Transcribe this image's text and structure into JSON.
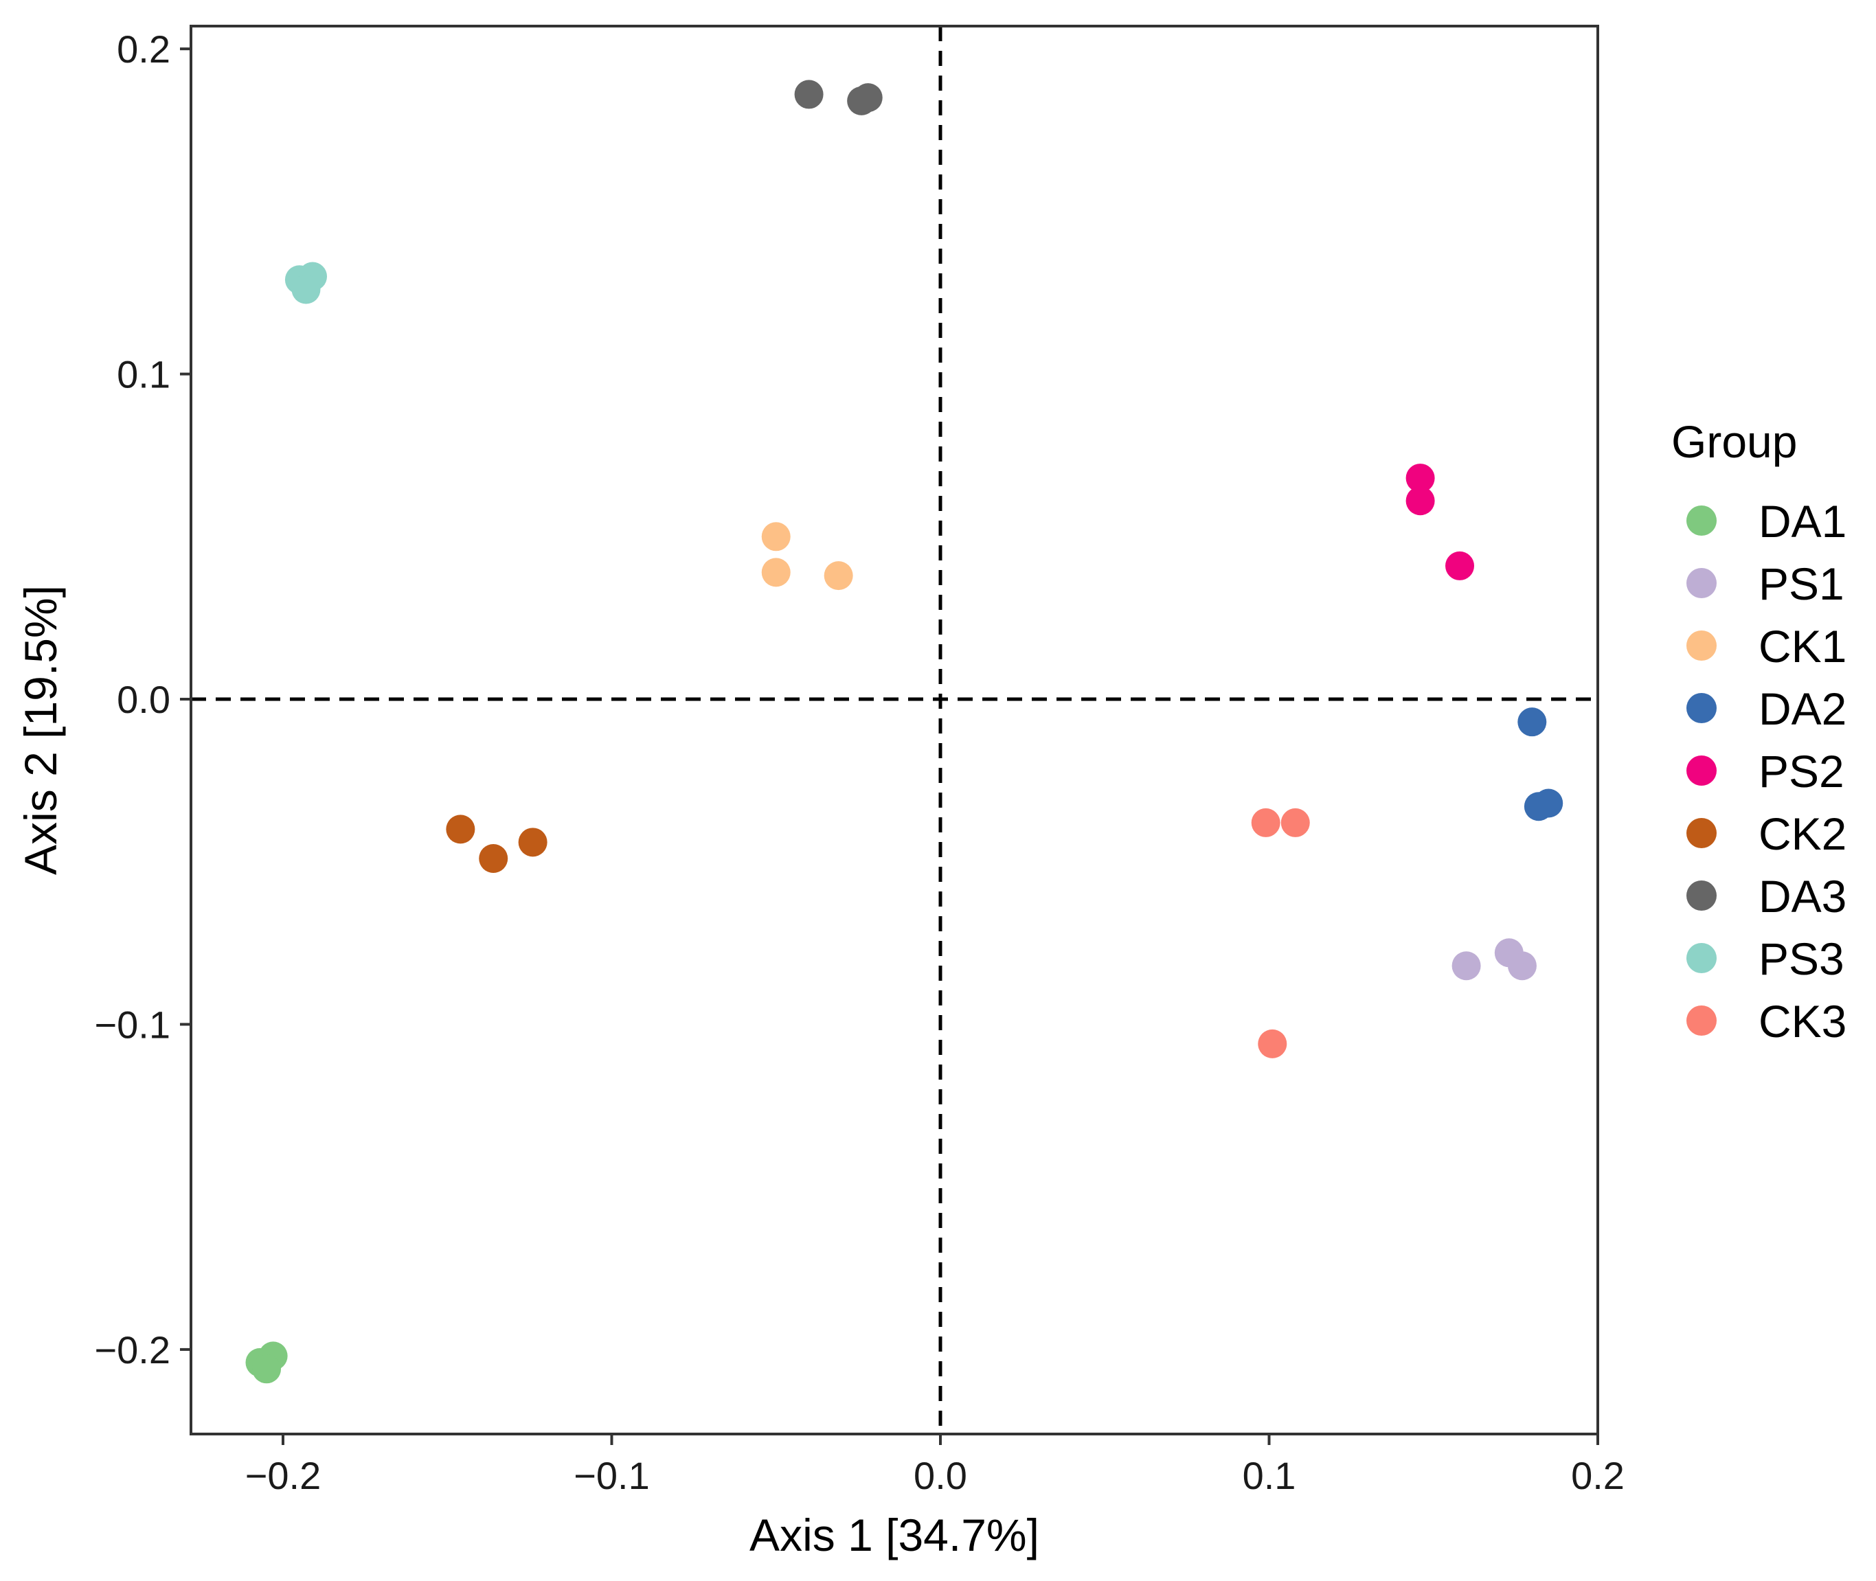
{
  "chart_data": {
    "type": "scatter",
    "xlabel": "Axis 1 [34.7%]",
    "ylabel": "Axis 2 [19.5%]",
    "xlim": [
      -0.228,
      0.2
    ],
    "ylim": [
      -0.226,
      0.207
    ],
    "xticks": [
      -0.2,
      -0.1,
      0.0,
      0.1,
      0.2
    ],
    "xtick_labels": [
      "−0.2",
      "−0.1",
      "0.0",
      "0.1",
      "0.2"
    ],
    "yticks": [
      -0.2,
      -0.1,
      0.0,
      0.1,
      0.2
    ],
    "ytick_labels": [
      "−0.2",
      "−0.1",
      "0.0",
      "0.1",
      "0.2"
    ],
    "reference_lines": {
      "x": 0.0,
      "y": 0.0,
      "style": "dashed"
    },
    "grid": false,
    "legend": {
      "title": "Group",
      "placement": "right"
    },
    "series": [
      {
        "name": "DA1",
        "color": "#7fc97f",
        "points": [
          [
            -0.207,
            -0.204
          ],
          [
            -0.203,
            -0.202
          ],
          [
            -0.205,
            -0.206
          ]
        ]
      },
      {
        "name": "PS1",
        "color": "#beaed4",
        "points": [
          [
            0.16,
            -0.082
          ],
          [
            0.173,
            -0.078
          ],
          [
            0.177,
            -0.082
          ]
        ]
      },
      {
        "name": "CK1",
        "color": "#fdc086",
        "points": [
          [
            -0.05,
            0.05
          ],
          [
            -0.05,
            0.039
          ],
          [
            -0.031,
            0.038
          ]
        ]
      },
      {
        "name": "DA2",
        "color": "#386cb0",
        "points": [
          [
            0.18,
            -0.007
          ],
          [
            0.182,
            -0.033
          ],
          [
            0.185,
            -0.032
          ]
        ]
      },
      {
        "name": "PS2",
        "color": "#f0027f",
        "points": [
          [
            0.146,
            0.068
          ],
          [
            0.146,
            0.061
          ],
          [
            0.158,
            0.041
          ]
        ]
      },
      {
        "name": "CK2",
        "color": "#bf5b17",
        "points": [
          [
            -0.146,
            -0.04
          ],
          [
            -0.136,
            -0.049
          ],
          [
            -0.124,
            -0.044
          ]
        ]
      },
      {
        "name": "DA3",
        "color": "#666666",
        "points": [
          [
            -0.04,
            0.186
          ],
          [
            -0.024,
            0.184
          ],
          [
            -0.022,
            0.185
          ]
        ]
      },
      {
        "name": "PS3",
        "color": "#8dd3c7",
        "points": [
          [
            -0.195,
            0.129
          ],
          [
            -0.191,
            0.13
          ],
          [
            -0.193,
            0.126
          ]
        ]
      },
      {
        "name": "CK3",
        "color": "#fb8072",
        "points": [
          [
            0.099,
            -0.038
          ],
          [
            0.108,
            -0.038
          ],
          [
            0.101,
            -0.106
          ]
        ]
      }
    ]
  }
}
